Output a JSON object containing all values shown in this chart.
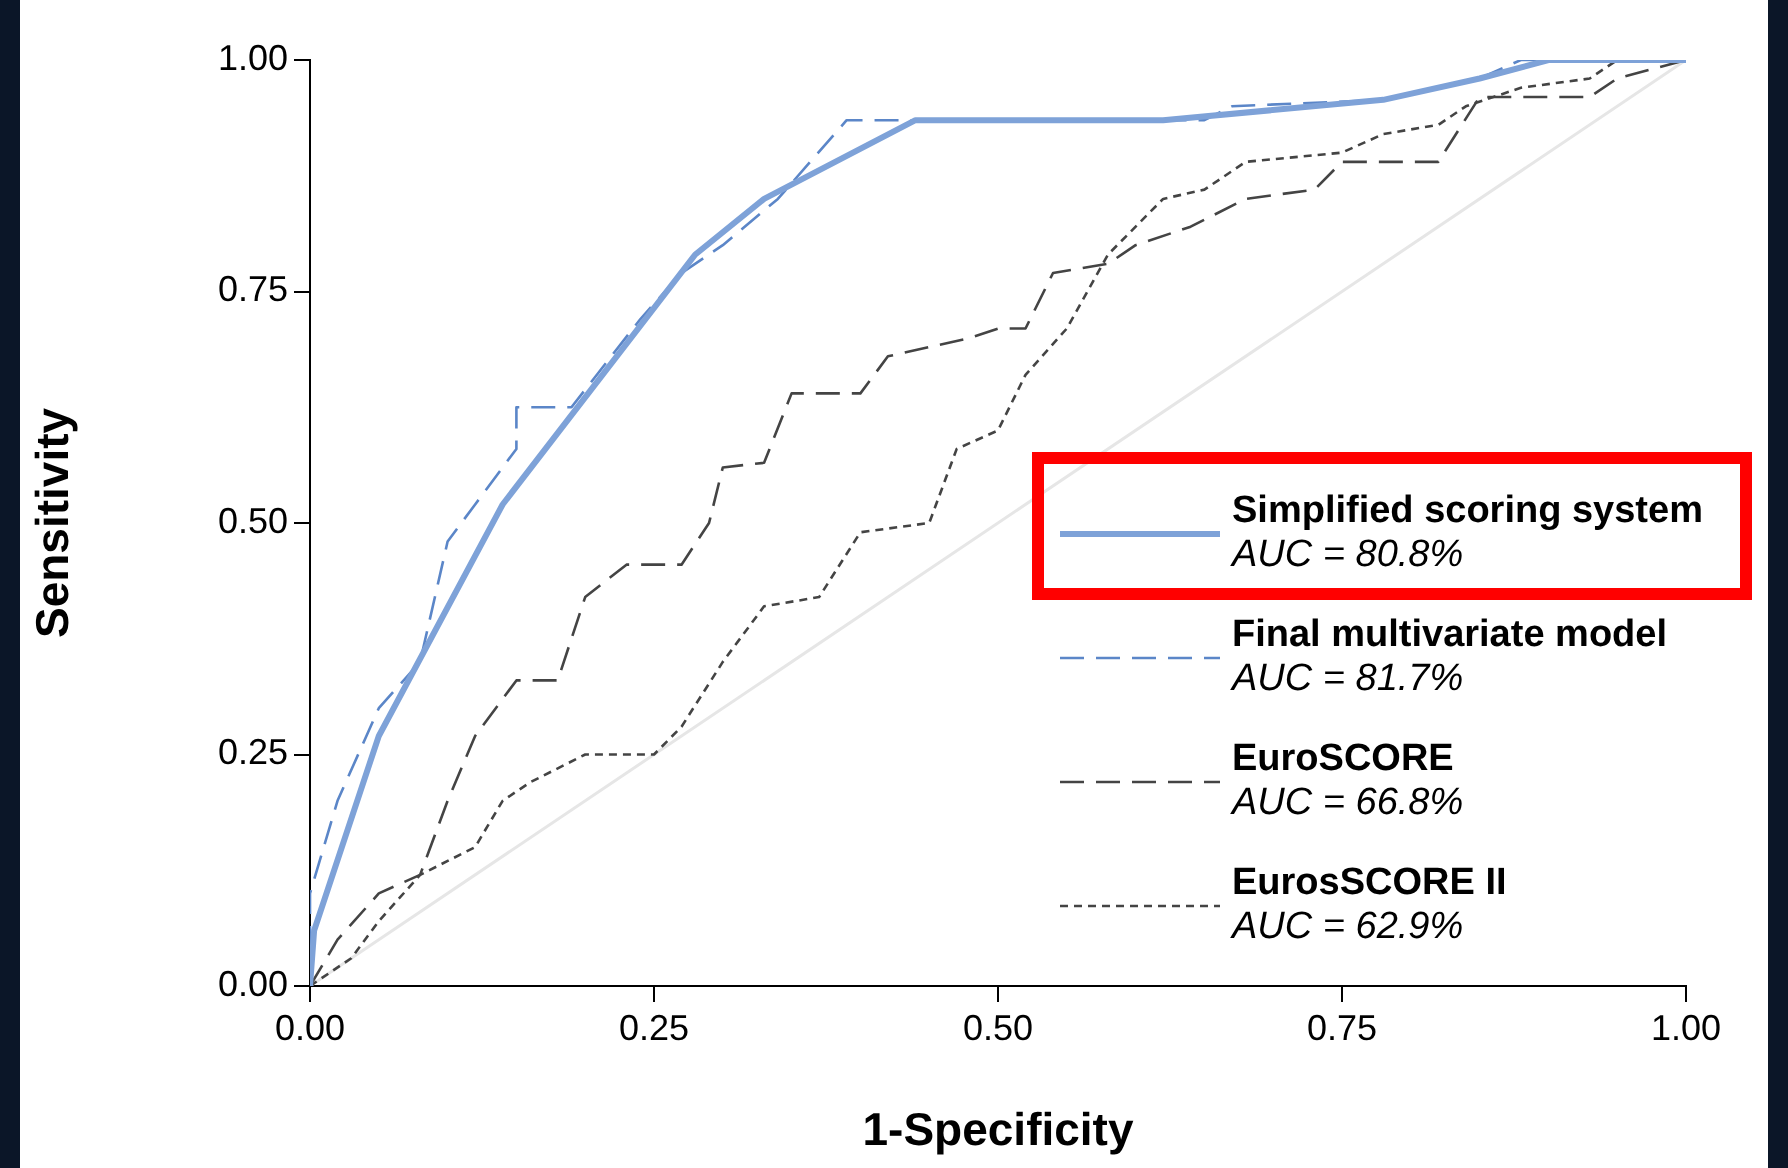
{
  "chart_data": {
    "type": "line",
    "xlabel": "1-Specificity",
    "ylabel": "Sensitivity",
    "xlim": [
      0,
      1
    ],
    "ylim": [
      0,
      1
    ],
    "xticks": [
      {
        "value": 0,
        "label": "0.00"
      },
      {
        "value": 0.25,
        "label": "0.25"
      },
      {
        "value": 0.5,
        "label": "0.50"
      },
      {
        "value": 0.75,
        "label": "0.75"
      },
      {
        "value": 1,
        "label": "1.00"
      }
    ],
    "yticks": [
      {
        "value": 0,
        "label": "0.00"
      },
      {
        "value": 0.25,
        "label": "0.25"
      },
      {
        "value": 0.5,
        "label": "0.50"
      },
      {
        "value": 0.75,
        "label": "0.75"
      },
      {
        "value": 1,
        "label": "1.00"
      }
    ],
    "grid": false,
    "legend": "bottom right",
    "marker": "none",
    "annotations": [
      "AUC = 80.8%",
      "AUC = 81.7%",
      "AUC = 66.8%",
      "AUC = 62.9%"
    ],
    "series": [
      {
        "name": "Simplified scoring system",
        "color": "#7ea2d8",
        "line_style": "solid",
        "x": [
          0,
          0.003,
          0.05,
          0.14,
          0.28,
          0.33,
          0.44,
          0.62,
          0.78,
          0.85,
          0.9,
          1
        ],
        "values": [
          0,
          0.06,
          0.27,
          0.52,
          0.79,
          0.85,
          0.935,
          0.935,
          0.957,
          0.98,
          1,
          1
        ]
      },
      {
        "name": "Final multivariate model",
        "color": "#5b86c8",
        "line_style": "dashed",
        "x": [
          0,
          0,
          0.02,
          0.05,
          0.08,
          0.1,
          0.12,
          0.15,
          0.15,
          0.19,
          0.24,
          0.27,
          0.3,
          0.34,
          0.39,
          0.44,
          0.65,
          0.67,
          0.78,
          0.85,
          0.88,
          1
        ],
        "values": [
          0,
          0.1,
          0.2,
          0.3,
          0.35,
          0.48,
          0.52,
          0.58,
          0.625,
          0.625,
          0.72,
          0.77,
          0.8,
          0.85,
          0.935,
          0.935,
          0.935,
          0.95,
          0.957,
          0.98,
          1,
          1
        ]
      },
      {
        "name": "EuroSCORE",
        "color": "#444444",
        "line_style": "dashed",
        "x": [
          0,
          0.02,
          0.05,
          0.08,
          0.1,
          0.12,
          0.15,
          0.18,
          0.2,
          0.23,
          0.27,
          0.29,
          0.3,
          0.33,
          0.35,
          0.4,
          0.42,
          0.48,
          0.5,
          0.52,
          0.54,
          0.58,
          0.6,
          0.64,
          0.68,
          0.73,
          0.75,
          0.82,
          0.85,
          0.93,
          0.95,
          1
        ],
        "values": [
          0,
          0.05,
          0.1,
          0.12,
          0.2,
          0.27,
          0.33,
          0.33,
          0.42,
          0.455,
          0.455,
          0.5,
          0.56,
          0.565,
          0.64,
          0.64,
          0.68,
          0.7,
          0.71,
          0.71,
          0.77,
          0.78,
          0.8,
          0.82,
          0.85,
          0.86,
          0.89,
          0.89,
          0.96,
          0.96,
          0.98,
          1
        ]
      },
      {
        "name": "EurosSCORE II",
        "color": "#444444",
        "line_style": "dotted",
        "x": [
          0,
          0.03,
          0.05,
          0.08,
          0.12,
          0.14,
          0.16,
          0.2,
          0.25,
          0.27,
          0.3,
          0.33,
          0.37,
          0.4,
          0.45,
          0.47,
          0.5,
          0.52,
          0.55,
          0.58,
          0.62,
          0.65,
          0.68,
          0.75,
          0.78,
          0.82,
          0.84,
          0.88,
          0.93,
          0.95,
          1
        ],
        "values": [
          0,
          0.03,
          0.07,
          0.12,
          0.15,
          0.2,
          0.22,
          0.25,
          0.25,
          0.28,
          0.35,
          0.41,
          0.42,
          0.49,
          0.5,
          0.58,
          0.6,
          0.66,
          0.71,
          0.79,
          0.85,
          0.86,
          0.89,
          0.9,
          0.92,
          0.93,
          0.95,
          0.97,
          0.98,
          1,
          1
        ]
      },
      {
        "color": "#e6e6e6",
        "line_style": "solid",
        "x": [
          0,
          1
        ],
        "values": [
          0,
          1
        ]
      }
    ]
  }
}
